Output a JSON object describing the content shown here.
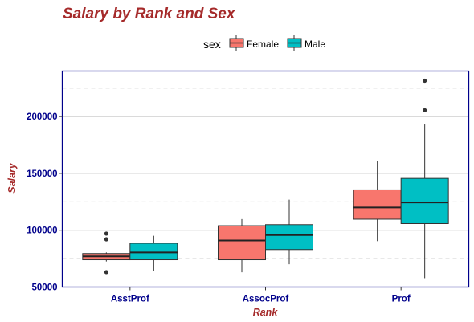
{
  "chart_data": {
    "type": "boxplot",
    "title": "Salary by Rank and Sex",
    "xlabel": "Rank",
    "ylabel": "Salary",
    "categories": [
      "AsstProf",
      "AssocProf",
      "Prof"
    ],
    "ylim": [
      50000,
      240000
    ],
    "yticks": [
      50000,
      100000,
      150000,
      200000
    ],
    "grid": "horizontal",
    "legend": {
      "title": "sex",
      "position": "top"
    },
    "series": [
      {
        "name": "Female",
        "color": "#f8766d",
        "boxes": [
          {
            "min": 72500,
            "q1": 74000,
            "median": 77000,
            "q3": 79500,
            "max": 80500,
            "outliers": [
              63100,
              92000,
              97000
            ]
          },
          {
            "min": 63000,
            "q1": 74000,
            "median": 91000,
            "q3": 104000,
            "max": 109800,
            "outliers": []
          },
          {
            "min": 90400,
            "q1": 109700,
            "median": 120000,
            "q3": 135500,
            "max": 161100,
            "outliers": []
          }
        ]
      },
      {
        "name": "Male",
        "color": "#00bfc4",
        "boxes": [
          {
            "min": 63900,
            "q1": 74000,
            "median": 80500,
            "q3": 88500,
            "max": 95100,
            "outliers": []
          },
          {
            "min": 70000,
            "q1": 83000,
            "median": 95700,
            "q3": 104900,
            "max": 126900,
            "outliers": []
          },
          {
            "min": 57800,
            "q1": 105800,
            "median": 124400,
            "q3": 145600,
            "max": 193000,
            "outliers": [
              205500,
              231500
            ]
          }
        ]
      }
    ]
  }
}
